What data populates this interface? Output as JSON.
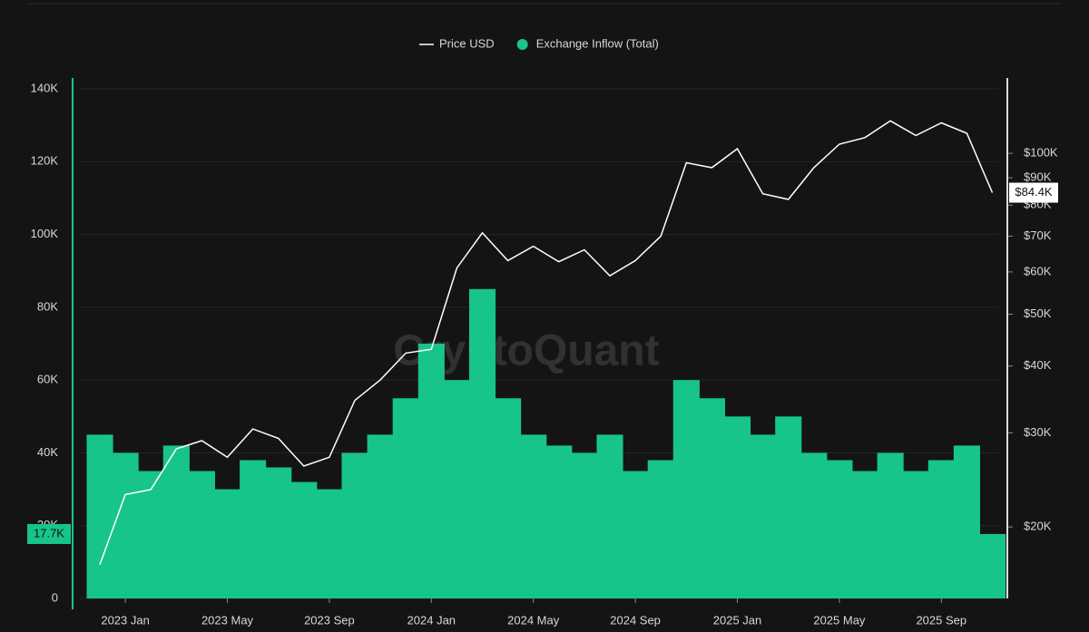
{
  "chart_data": {
    "type": "bar-line",
    "watermark": "CryptoQuant",
    "x": [
      "2022-12",
      "2023-01",
      "2023-02",
      "2023-03",
      "2023-04",
      "2023-05",
      "2023-06",
      "2023-07",
      "2023-08",
      "2023-09",
      "2023-10",
      "2023-11",
      "2023-12",
      "2024-01",
      "2024-02",
      "2024-03",
      "2024-04",
      "2024-05",
      "2024-06",
      "2024-07",
      "2024-08",
      "2024-09",
      "2024-10",
      "2024-11",
      "2024-12",
      "2025-01",
      "2025-02",
      "2025-03",
      "2025-04",
      "2025-05",
      "2025-06",
      "2025-07",
      "2025-08",
      "2025-09",
      "2025-10",
      "2025-11"
    ],
    "xticks": [
      {
        "value": "2023-01",
        "label": "2023 Jan"
      },
      {
        "value": "2023-05",
        "label": "2023 May"
      },
      {
        "value": "2023-09",
        "label": "2023 Sep"
      },
      {
        "value": "2024-01",
        "label": "2024 Jan"
      },
      {
        "value": "2024-05",
        "label": "2024 May"
      },
      {
        "value": "2024-09",
        "label": "2024 Sep"
      },
      {
        "value": "2025-01",
        "label": "2025 Jan"
      },
      {
        "value": "2025-05",
        "label": "2025 May"
      },
      {
        "value": "2025-09",
        "label": "2025 Sep"
      }
    ],
    "series": [
      {
        "name": "Price USD",
        "kind": "line",
        "axis": "y2",
        "color": "#ffffff",
        "last_label": "$84.4K",
        "values": [
          17000,
          23000,
          23500,
          28000,
          29000,
          27000,
          30500,
          29300,
          26000,
          27000,
          34500,
          37700,
          42300,
          43000,
          61000,
          71000,
          63000,
          67000,
          62700,
          66000,
          59000,
          63000,
          70000,
          96000,
          94000,
          102000,
          84000,
          82000,
          94000,
          104000,
          107000,
          115000,
          108000,
          114000,
          109000,
          84400
        ]
      },
      {
        "name": "Exchange Inflow (Total)",
        "kind": "bar",
        "color": "#17c48c",
        "last_label": "17.7K",
        "values": [
          45000,
          40000,
          35000,
          42000,
          35000,
          30000,
          38000,
          36000,
          32000,
          30000,
          40000,
          45000,
          55000,
          70000,
          60000,
          85000,
          55000,
          45000,
          42000,
          40000,
          45000,
          35000,
          38000,
          60000,
          55000,
          50000,
          45000,
          50000,
          40000,
          38000,
          35000,
          40000,
          35000,
          38000,
          42000,
          17700
        ]
      }
    ],
    "ylim": [
      0,
      140000
    ],
    "yticks": [
      0,
      {
        "value": 20000,
        "label": "20K"
      },
      {
        "value": 40000,
        "label": "40K"
      },
      {
        "value": 60000,
        "label": "60K"
      },
      {
        "value": 80000,
        "label": "80K"
      },
      {
        "value": 100000,
        "label": "100K"
      },
      {
        "value": 120000,
        "label": "120K"
      },
      {
        "value": 140000,
        "label": "140K"
      }
    ],
    "y2lim": [
      14700,
      132000
    ],
    "y2scale": "log",
    "y2ticks": [
      {
        "value": 20000,
        "label": "$20K"
      },
      {
        "value": 30000,
        "label": "$30K"
      },
      {
        "value": 40000,
        "label": "$40K"
      },
      {
        "value": 50000,
        "label": "$50K"
      },
      {
        "value": 60000,
        "label": "$60K"
      },
      {
        "value": 70000,
        "label": "$70K"
      },
      {
        "value": 80000,
        "label": "$80K"
      },
      {
        "value": 90000,
        "label": "$90K"
      },
      {
        "value": 100000,
        "label": "$100K"
      }
    ],
    "grid": true
  }
}
